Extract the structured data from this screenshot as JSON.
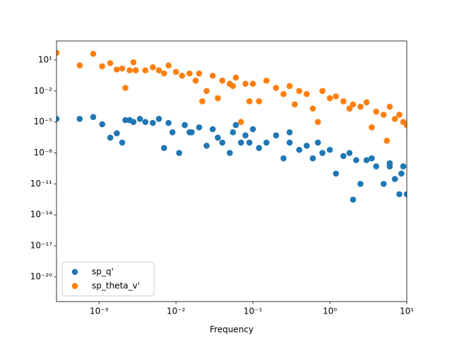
{
  "chart_data": {
    "type": "scatter",
    "xlabel": "Frequency",
    "xscale": "log",
    "yscale": "log",
    "xlim": [
      0.00028,
      10
    ],
    "ylim": [
      4e-23,
      700
    ],
    "xticks": [
      {
        "value": 0.001,
        "label": "10⁻³"
      },
      {
        "value": 0.01,
        "label": "10⁻²"
      },
      {
        "value": 0.1,
        "label": "10⁻¹"
      },
      {
        "value": 1,
        "label": "10⁰"
      },
      {
        "value": 10,
        "label": "10¹"
      }
    ],
    "yticks": [
      {
        "value": 10,
        "label": "10¹"
      },
      {
        "value": 0.01,
        "label": "10⁻²"
      },
      {
        "value": 1e-05,
        "label": "10⁻⁵"
      },
      {
        "value": 1e-08,
        "label": "10⁻⁸"
      },
      {
        "value": 1e-11,
        "label": "10⁻¹¹"
      },
      {
        "value": 1e-14,
        "label": "10⁻¹⁴"
      },
      {
        "value": 1e-17,
        "label": "10⁻¹⁷"
      },
      {
        "value": 1e-20,
        "label": "10⁻²⁰"
      }
    ],
    "legend": "lower left",
    "series": [
      {
        "name": "sp_q'",
        "color": "#1f77b4",
        "x": [
          0.00028,
          0.00056,
          0.00084,
          0.0011,
          0.0014,
          0.0017,
          0.002,
          0.0022,
          0.0025,
          0.0028,
          0.0034,
          0.004,
          0.005,
          0.006,
          0.007,
          0.008,
          0.009,
          0.011,
          0.013,
          0.016,
          0.02,
          0.025,
          0.03,
          0.04,
          0.05,
          0.06,
          0.07,
          0.08,
          0.1,
          0.12,
          0.15,
          0.2,
          0.25,
          0.3,
          0.4,
          0.5,
          0.6,
          0.8,
          1,
          1.2,
          1.5,
          2,
          2.2,
          2.5,
          3,
          4,
          5,
          6,
          7,
          8,
          9,
          10,
          0.015,
          0.035,
          0.055,
          0.09,
          0.3,
          0.7,
          1.8,
          3.5,
          6,
          8.5
        ],
        "values": [
          2e-05,
          2e-05,
          3e-05,
          6e-06,
          3e-07,
          8e-07,
          1e-07,
          1.5e-05,
          1.5e-05,
          1e-05,
          2e-05,
          1e-05,
          8e-06,
          2e-05,
          3e-08,
          8e-06,
          1e-06,
          1e-08,
          5e-06,
          1e-06,
          3e-06,
          5e-08,
          2e-06,
          1e-07,
          1e-08,
          5e-06,
          1e-07,
          5e-07,
          2e-06,
          3e-08,
          1e-07,
          5e-07,
          3e-09,
          1e-07,
          2e-08,
          5e-08,
          3e-09,
          1e-08,
          2e-08,
          1e-10,
          5e-09,
          3e-13,
          2e-09,
          1e-11,
          2e-09,
          5e-10,
          1e-11,
          5e-10,
          3e-11,
          1e-12,
          5e-10,
          1e-12,
          1e-06,
          3e-07,
          1e-06,
          1e-07,
          1e-06,
          1e-07,
          1e-08,
          3e-09,
          1e-09,
          1e-10
        ]
      },
      {
        "name": "sp_theta_v'",
        "color": "#ff7f0e",
        "x": [
          0.00028,
          0.00056,
          0.00084,
          0.0011,
          0.0014,
          0.0017,
          0.002,
          0.0022,
          0.0025,
          0.0028,
          0.003,
          0.004,
          0.005,
          0.006,
          0.007,
          0.008,
          0.01,
          0.012,
          0.015,
          0.018,
          0.02,
          0.025,
          0.03,
          0.04,
          0.05,
          0.06,
          0.07,
          0.08,
          0.1,
          0.12,
          0.15,
          0.2,
          0.25,
          0.3,
          0.4,
          0.5,
          0.6,
          0.8,
          1,
          1.2,
          1.5,
          2,
          2.5,
          3,
          4,
          5,
          5.5,
          6,
          7,
          8,
          9,
          10,
          0.022,
          0.035,
          0.055,
          0.09,
          0.35,
          0.7,
          1.8,
          3.5
        ],
        "values": [
          50,
          3,
          40,
          2.5,
          5,
          1.2,
          1.5,
          0.02,
          1,
          6,
          1,
          1,
          2,
          1,
          0.5,
          3,
          0.7,
          0.3,
          0.5,
          0.1,
          0.5,
          0.01,
          0.3,
          0.1,
          0.05,
          0.2,
          1e-05,
          0.05,
          0.05,
          0.001,
          0.1,
          0.02,
          0.005,
          0.03,
          0.01,
          0.005,
          0.0002,
          0.01,
          0.002,
          0.003,
          0.001,
          0.0005,
          0.0003,
          0.0008,
          0.0001,
          5e-05,
          1.5e-07,
          0.0003,
          2e-05,
          5e-05,
          1e-05,
          5e-06,
          0.001,
          0.002,
          0.03,
          0.001,
          0.0005,
          1e-05,
          0.0002,
          3e-06
        ]
      }
    ]
  }
}
